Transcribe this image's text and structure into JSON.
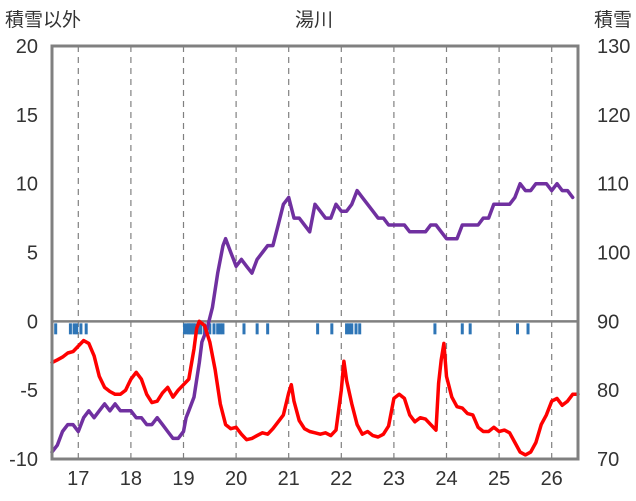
{
  "chart_data": {
    "type": "line",
    "title": "湯川",
    "left_axis_label": "積雪以外",
    "right_axis_label": "積雪",
    "y_left_range": [
      -10,
      20
    ],
    "y_left_ticks": [
      "20",
      "15",
      "10",
      "5",
      "0",
      "-5",
      "-10"
    ],
    "y_right_range": [
      70,
      130
    ],
    "y_right_ticks": [
      "130",
      "120",
      "110",
      "100",
      "90",
      "80",
      "70"
    ],
    "x_range": [
      16.5,
      26.5
    ],
    "x_ticks": [
      "17",
      "18",
      "19",
      "20",
      "21",
      "22",
      "23",
      "24",
      "25",
      "26"
    ],
    "grid": "dashed vertical lines at each day",
    "series": [
      {
        "axis": "right",
        "color": "#7030a0",
        "points": [
          [
            16.5,
            71
          ],
          [
            16.6,
            72
          ],
          [
            16.7,
            74
          ],
          [
            16.8,
            75
          ],
          [
            16.9,
            75
          ],
          [
            17.0,
            74
          ],
          [
            17.1,
            76
          ],
          [
            17.2,
            77
          ],
          [
            17.3,
            76
          ],
          [
            17.4,
            77
          ],
          [
            17.5,
            78
          ],
          [
            17.6,
            77
          ],
          [
            17.7,
            78
          ],
          [
            17.8,
            77
          ],
          [
            17.9,
            77
          ],
          [
            18.0,
            77
          ],
          [
            18.1,
            76
          ],
          [
            18.2,
            76
          ],
          [
            18.3,
            75
          ],
          [
            18.4,
            75
          ],
          [
            18.5,
            76
          ],
          [
            18.6,
            75
          ],
          [
            18.7,
            74
          ],
          [
            18.8,
            73
          ],
          [
            18.9,
            73
          ],
          [
            19.0,
            74
          ],
          [
            19.05,
            76
          ],
          [
            19.1,
            77
          ],
          [
            19.2,
            79
          ],
          [
            19.3,
            84
          ],
          [
            19.35,
            87
          ],
          [
            19.45,
            89
          ],
          [
            19.55,
            92
          ],
          [
            19.65,
            97
          ],
          [
            19.75,
            101
          ],
          [
            19.8,
            102
          ],
          [
            19.85,
            101
          ],
          [
            19.9,
            100
          ],
          [
            19.95,
            99
          ],
          [
            20.0,
            98
          ],
          [
            20.1,
            99
          ],
          [
            20.2,
            98
          ],
          [
            20.3,
            97
          ],
          [
            20.4,
            99
          ],
          [
            20.5,
            100
          ],
          [
            20.6,
            101
          ],
          [
            20.7,
            101
          ],
          [
            20.8,
            104
          ],
          [
            20.9,
            107
          ],
          [
            21.0,
            108
          ],
          [
            21.1,
            105
          ],
          [
            21.2,
            105
          ],
          [
            21.3,
            104
          ],
          [
            21.4,
            103
          ],
          [
            21.5,
            107
          ],
          [
            21.6,
            106
          ],
          [
            21.7,
            105
          ],
          [
            21.8,
            105
          ],
          [
            21.9,
            107
          ],
          [
            22.0,
            106
          ],
          [
            22.1,
            106
          ],
          [
            22.2,
            107
          ],
          [
            22.3,
            109
          ],
          [
            22.4,
            108
          ],
          [
            22.5,
            107
          ],
          [
            22.6,
            106
          ],
          [
            22.7,
            105
          ],
          [
            22.8,
            105
          ],
          [
            22.9,
            104
          ],
          [
            23.0,
            104
          ],
          [
            23.1,
            104
          ],
          [
            23.2,
            104
          ],
          [
            23.3,
            103
          ],
          [
            23.4,
            103
          ],
          [
            23.5,
            103
          ],
          [
            23.6,
            103
          ],
          [
            23.7,
            104
          ],
          [
            23.8,
            104
          ],
          [
            23.9,
            103
          ],
          [
            24.0,
            102
          ],
          [
            24.1,
            102
          ],
          [
            24.2,
            102
          ],
          [
            24.3,
            104
          ],
          [
            24.4,
            104
          ],
          [
            24.5,
            104
          ],
          [
            24.6,
            104
          ],
          [
            24.7,
            105
          ],
          [
            24.8,
            105
          ],
          [
            24.9,
            107
          ],
          [
            25.0,
            107
          ],
          [
            25.1,
            107
          ],
          [
            25.2,
            107
          ],
          [
            25.3,
            108
          ],
          [
            25.4,
            110
          ],
          [
            25.5,
            109
          ],
          [
            25.6,
            109
          ],
          [
            25.7,
            110
          ],
          [
            25.8,
            110
          ],
          [
            25.9,
            110
          ],
          [
            26.0,
            109
          ],
          [
            26.1,
            110
          ],
          [
            26.2,
            109
          ],
          [
            26.3,
            109
          ],
          [
            26.4,
            108
          ]
        ]
      },
      {
        "axis": "left",
        "color": "#ff0000",
        "points": [
          [
            16.5,
            -3
          ],
          [
            16.6,
            -2.8
          ],
          [
            16.7,
            -2.6
          ],
          [
            16.8,
            -2.3
          ],
          [
            16.9,
            -2.2
          ],
          [
            17.0,
            -1.8
          ],
          [
            17.1,
            -1.4
          ],
          [
            17.2,
            -1.6
          ],
          [
            17.3,
            -2.5
          ],
          [
            17.4,
            -4.0
          ],
          [
            17.5,
            -4.8
          ],
          [
            17.6,
            -5.1
          ],
          [
            17.7,
            -5.3
          ],
          [
            17.8,
            -5.3
          ],
          [
            17.9,
            -5.0
          ],
          [
            18.0,
            -4.2
          ],
          [
            18.1,
            -3.7
          ],
          [
            18.2,
            -4.2
          ],
          [
            18.3,
            -5.3
          ],
          [
            18.4,
            -5.9
          ],
          [
            18.5,
            -5.8
          ],
          [
            18.6,
            -5.2
          ],
          [
            18.7,
            -4.8
          ],
          [
            18.8,
            -5.5
          ],
          [
            18.9,
            -5.0
          ],
          [
            19.0,
            -4.6
          ],
          [
            19.1,
            -4.2
          ],
          [
            19.2,
            -2.0
          ],
          [
            19.25,
            -0.5
          ],
          [
            19.3,
            0.0
          ],
          [
            19.4,
            -0.3
          ],
          [
            19.5,
            -1.5
          ],
          [
            19.6,
            -3.5
          ],
          [
            19.7,
            -6.0
          ],
          [
            19.8,
            -7.5
          ],
          [
            19.9,
            -7.8
          ],
          [
            20.0,
            -7.7
          ],
          [
            20.1,
            -8.2
          ],
          [
            20.2,
            -8.6
          ],
          [
            20.3,
            -8.5
          ],
          [
            20.4,
            -8.3
          ],
          [
            20.5,
            -8.1
          ],
          [
            20.6,
            -8.2
          ],
          [
            20.7,
            -7.8
          ],
          [
            20.8,
            -7.3
          ],
          [
            20.9,
            -6.8
          ],
          [
            21.0,
            -5.2
          ],
          [
            21.05,
            -4.6
          ],
          [
            21.1,
            -5.8
          ],
          [
            21.2,
            -7.2
          ],
          [
            21.3,
            -7.8
          ],
          [
            21.4,
            -8.0
          ],
          [
            21.5,
            -8.1
          ],
          [
            21.6,
            -8.2
          ],
          [
            21.7,
            -8.1
          ],
          [
            21.8,
            -8.3
          ],
          [
            21.9,
            -7.9
          ],
          [
            22.0,
            -5.0
          ],
          [
            22.05,
            -2.9
          ],
          [
            22.1,
            -4.3
          ],
          [
            22.2,
            -6.0
          ],
          [
            22.3,
            -7.5
          ],
          [
            22.4,
            -8.2
          ],
          [
            22.5,
            -8.0
          ],
          [
            22.6,
            -8.3
          ],
          [
            22.7,
            -8.4
          ],
          [
            22.8,
            -8.2
          ],
          [
            22.9,
            -7.6
          ],
          [
            23.0,
            -5.6
          ],
          [
            23.1,
            -5.3
          ],
          [
            23.2,
            -5.6
          ],
          [
            23.3,
            -6.8
          ],
          [
            23.4,
            -7.3
          ],
          [
            23.5,
            -7.0
          ],
          [
            23.6,
            -7.1
          ],
          [
            23.7,
            -7.5
          ],
          [
            23.8,
            -7.9
          ],
          [
            23.85,
            -4.5
          ],
          [
            23.9,
            -2.8
          ],
          [
            23.95,
            -1.6
          ],
          [
            24.0,
            -4.0
          ],
          [
            24.1,
            -5.5
          ],
          [
            24.2,
            -6.2
          ],
          [
            24.3,
            -6.3
          ],
          [
            24.4,
            -6.7
          ],
          [
            24.5,
            -6.8
          ],
          [
            24.6,
            -7.7
          ],
          [
            24.7,
            -8.0
          ],
          [
            24.8,
            -8.0
          ],
          [
            24.9,
            -7.7
          ],
          [
            25.0,
            -8.0
          ],
          [
            25.1,
            -7.9
          ],
          [
            25.2,
            -8.1
          ],
          [
            25.3,
            -8.8
          ],
          [
            25.4,
            -9.5
          ],
          [
            25.5,
            -9.7
          ],
          [
            25.6,
            -9.5
          ],
          [
            25.7,
            -8.8
          ],
          [
            25.8,
            -7.5
          ],
          [
            25.9,
            -6.8
          ],
          [
            26.0,
            -5.8
          ],
          [
            26.1,
            -5.6
          ],
          [
            26.2,
            -6.1
          ],
          [
            26.3,
            -5.8
          ],
          [
            26.4,
            -5.3
          ],
          [
            26.5,
            -5.3
          ]
        ]
      }
    ],
    "precip_bars": {
      "color": "#2e75b6",
      "x": [
        16.57,
        16.85,
        16.92,
        16.97,
        17.05,
        17.15,
        19.02,
        19.07,
        19.1,
        19.13,
        19.16,
        19.19,
        19.22,
        19.28,
        19.33,
        19.4,
        19.5,
        19.58,
        19.65,
        19.7,
        19.75,
        20.15,
        20.4,
        20.6,
        21.55,
        21.82,
        22.1,
        22.15,
        22.2,
        22.28,
        22.35,
        23.78,
        24.3,
        24.45,
        25.35,
        25.55
      ]
    }
  }
}
